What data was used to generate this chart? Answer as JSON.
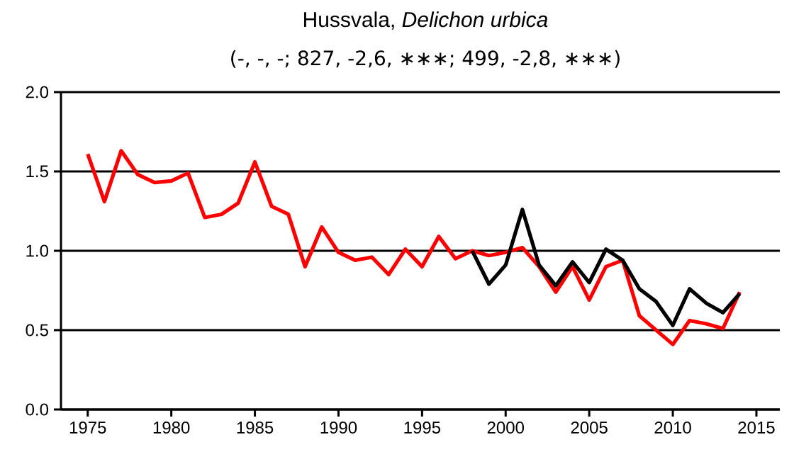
{
  "chart_data": {
    "type": "line",
    "title": "Hussvala, *Delichon urbica*",
    "subtitle": "(-, -, -; 827, -2,6, ∗∗∗; 499, -2,8, ∗∗∗)",
    "xlim": [
      1973.4,
      2016.4
    ],
    "xticks": [
      1975,
      1980,
      1985,
      1990,
      1995,
      2000,
      2005,
      2010,
      2015
    ],
    "ylim": [
      0,
      2
    ],
    "yticks": [
      {
        "value": 0,
        "label": "0.0"
      },
      {
        "value": 0.5,
        "label": "0.5"
      },
      {
        "value": 1,
        "label": "1.0"
      },
      {
        "value": 1.5,
        "label": "1.5"
      },
      {
        "value": 2,
        "label": "2.0"
      }
    ],
    "grid": "y",
    "marker": "none",
    "line_style": "solid",
    "series": [
      {
        "color": "#ff0000",
        "x": [
          1975,
          1976,
          1977,
          1978,
          1979,
          1980,
          1981,
          1982,
          1983,
          1984,
          1985,
          1986,
          1987,
          1988,
          1989,
          1990,
          1991,
          1992,
          1993,
          1994,
          1995,
          1996,
          1997,
          1998,
          1999,
          2000,
          2001,
          2002,
          2003,
          2004,
          2005,
          2006,
          2007,
          2008,
          2009,
          2010,
          2011,
          2012,
          2013,
          2014
        ],
        "values": [
          1.61,
          1.31,
          1.63,
          1.48,
          1.43,
          1.44,
          1.49,
          1.21,
          1.23,
          1.3,
          1.56,
          1.28,
          1.23,
          0.9,
          1.15,
          0.99,
          0.94,
          0.96,
          0.85,
          1.01,
          0.9,
          1.09,
          0.95,
          1.0,
          0.97,
          0.99,
          1.02,
          0.9,
          0.74,
          0.9,
          0.69,
          0.9,
          0.94,
          0.59,
          0.5,
          0.41,
          0.56,
          0.54,
          0.51,
          0.74
        ]
      },
      {
        "color": "#000000",
        "x": [
          1998,
          1999,
          2000,
          2001,
          2002,
          2003,
          2004,
          2005,
          2006,
          2007,
          2008,
          2009,
          2010,
          2011,
          2012,
          2013,
          2014
        ],
        "values": [
          1.0,
          0.79,
          0.91,
          1.26,
          0.91,
          0.78,
          0.93,
          0.8,
          1.01,
          0.94,
          0.76,
          0.68,
          0.53,
          0.76,
          0.67,
          0.61,
          0.73
        ]
      }
    ]
  }
}
